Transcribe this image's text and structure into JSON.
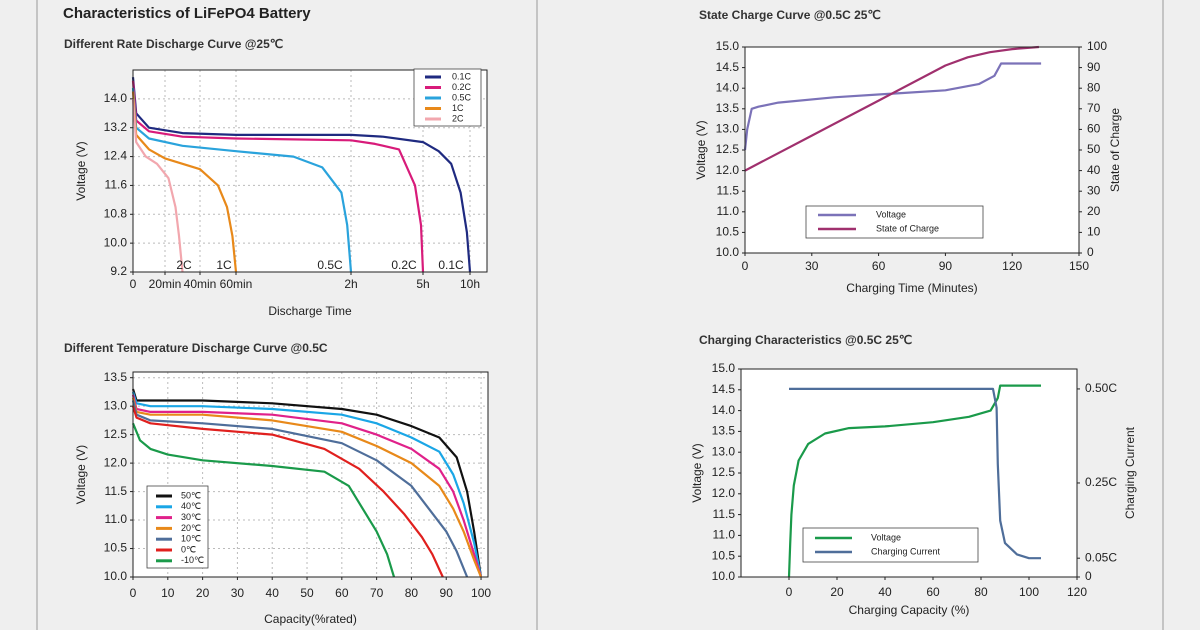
{
  "title": "Characteristics of LiFePO4 Battery",
  "chart_data": [
    {
      "type": "line",
      "title": "Different Rate Discharge Curve @25℃",
      "x_label": "Discharge Time",
      "y_label": "Voltage (V)",
      "ylim": [
        9.2,
        14.8
      ],
      "yticks": [
        9.2,
        {
          "value": 10,
          "label": "10.0"
        },
        10.8,
        11.6,
        12.4,
        13.2,
        {
          "value": 14,
          "label": "14.0"
        }
      ],
      "xlim": [
        0,
        600
      ],
      "xticks": [
        0,
        {
          "value": 20,
          "label": "20min"
        },
        {
          "value": 40,
          "label": "40min"
        },
        {
          "value": 60,
          "label": "60min"
        },
        {
          "value": 120,
          "label": "2h"
        },
        {
          "value": 300,
          "label": "5h"
        },
        {
          "value": 600,
          "label": "10h"
        }
      ],
      "grid": true,
      "legend": "upper right",
      "annotations": [
        "2C",
        "1C",
        "0.5C",
        "0.2C",
        "0.1C"
      ],
      "series": [
        {
          "name": "0.1C",
          "color": "#1f2a80",
          "x": [
            0,
            2,
            10,
            30,
            60,
            120,
            200,
            300,
            400,
            480,
            540,
            580,
            600
          ],
          "values": [
            14.6,
            13.6,
            13.2,
            13.05,
            13.0,
            13.0,
            12.95,
            12.8,
            12.55,
            12.2,
            11.4,
            10.3,
            9.2
          ]
        },
        {
          "name": "0.2C",
          "color": "#d81b7a",
          "x": [
            0,
            2,
            10,
            30,
            60,
            120,
            180,
            240,
            280,
            295,
            300
          ],
          "values": [
            14.5,
            13.4,
            13.1,
            12.95,
            12.9,
            12.85,
            12.75,
            12.6,
            11.6,
            10.5,
            9.2
          ]
        },
        {
          "name": "0.5C",
          "color": "#2aa3dc",
          "x": [
            0,
            2,
            10,
            30,
            60,
            90,
            105,
            115,
            118,
            120
          ],
          "values": [
            14.3,
            13.2,
            12.9,
            12.7,
            12.55,
            12.4,
            12.1,
            11.4,
            10.5,
            9.2
          ]
        },
        {
          "name": "1C",
          "color": "#e8891a",
          "x": [
            0,
            2,
            10,
            20,
            40,
            50,
            55,
            58,
            60
          ],
          "values": [
            14.2,
            13.0,
            12.6,
            12.35,
            12.05,
            11.6,
            11.0,
            10.2,
            9.2
          ]
        },
        {
          "name": "2C",
          "color": "#f2a7ae",
          "x": [
            0,
            2,
            8,
            15,
            22,
            26,
            28,
            30
          ],
          "values": [
            14.0,
            12.8,
            12.4,
            12.2,
            11.8,
            11.0,
            10.2,
            9.2
          ]
        }
      ]
    },
    {
      "type": "line",
      "title": "Different Temperature Discharge Curve @0.5C",
      "x_label": "Capacity(%rated)",
      "y_label": "Voltage (V)",
      "ylim": [
        10,
        13.6
      ],
      "yticks": [
        {
          "value": 10,
          "label": "10.0"
        },
        10.5,
        {
          "value": 11,
          "label": "11.0"
        },
        11.5,
        {
          "value": 12,
          "label": "12.0"
        },
        12.5,
        {
          "value": 13,
          "label": "13.0"
        },
        13.5
      ],
      "xlim": [
        0,
        102
      ],
      "xticks": [
        0,
        10,
        20,
        30,
        40,
        50,
        60,
        70,
        80,
        90,
        100
      ],
      "grid": true,
      "legend": "lower left",
      "series": [
        {
          "name": "50℃",
          "color": "#111111",
          "x": [
            0,
            1,
            5,
            20,
            40,
            60,
            70,
            80,
            88,
            93,
            96,
            98,
            100
          ],
          "values": [
            13.3,
            13.1,
            13.1,
            13.1,
            13.05,
            12.95,
            12.85,
            12.65,
            12.45,
            12.1,
            11.5,
            10.8,
            10.0
          ]
        },
        {
          "name": "40℃",
          "color": "#1aa6e6",
          "x": [
            0,
            1,
            5,
            20,
            40,
            60,
            70,
            80,
            88,
            92,
            95,
            98,
            100
          ],
          "values": [
            13.25,
            13.05,
            13.0,
            13.0,
            12.95,
            12.85,
            12.7,
            12.45,
            12.2,
            11.8,
            11.3,
            10.6,
            10.0
          ]
        },
        {
          "name": "30℃",
          "color": "#e0218a",
          "x": [
            0,
            1,
            5,
            20,
            40,
            60,
            70,
            80,
            88,
            92,
            95,
            98,
            100
          ],
          "values": [
            13.2,
            12.95,
            12.9,
            12.9,
            12.85,
            12.7,
            12.5,
            12.25,
            11.9,
            11.5,
            11.0,
            10.4,
            10.0
          ]
        },
        {
          "name": "20℃",
          "color": "#e8891a",
          "x": [
            0,
            1,
            5,
            20,
            40,
            60,
            70,
            80,
            88,
            92,
            95,
            98,
            100
          ],
          "values": [
            13.15,
            12.9,
            12.85,
            12.85,
            12.75,
            12.55,
            12.3,
            12.0,
            11.6,
            11.2,
            10.8,
            10.3,
            10.0
          ]
        },
        {
          "name": "10℃",
          "color": "#4f6e9a",
          "x": [
            0,
            1,
            5,
            20,
            40,
            60,
            70,
            80,
            85,
            90,
            93,
            96
          ],
          "values": [
            13.1,
            12.85,
            12.75,
            12.7,
            12.6,
            12.35,
            12.05,
            11.6,
            11.2,
            10.8,
            10.45,
            10.0
          ]
        },
        {
          "name": "0℃",
          "color": "#e0201e",
          "x": [
            0,
            1,
            5,
            20,
            40,
            55,
            65,
            72,
            78,
            83,
            86,
            89
          ],
          "values": [
            13.0,
            12.8,
            12.7,
            12.6,
            12.5,
            12.25,
            11.9,
            11.5,
            11.1,
            10.7,
            10.4,
            10.0
          ]
        },
        {
          "name": "-10℃",
          "color": "#1a9a4a",
          "x": [
            0,
            2,
            5,
            10,
            20,
            40,
            55,
            62,
            66,
            70,
            73,
            75
          ],
          "values": [
            12.7,
            12.4,
            12.25,
            12.15,
            12.05,
            11.95,
            11.85,
            11.6,
            11.2,
            10.8,
            10.4,
            10.0
          ]
        }
      ]
    },
    {
      "type": "line",
      "title": "State  Charge  Curve @0.5C 25℃",
      "x_label": "Charging Time (Minutes)",
      "y_label": "Voltage (V)",
      "y2_label": "State of Charge",
      "ylim": [
        10,
        15
      ],
      "yticks": [
        {
          "value": 10,
          "label": "10.0"
        },
        10.5,
        {
          "value": 11,
          "label": "11.0"
        },
        11.5,
        {
          "value": 12,
          "label": "12.0"
        },
        12.5,
        {
          "value": 13,
          "label": "13.0"
        },
        13.5,
        {
          "value": 14,
          "label": "14.0"
        },
        14.5,
        {
          "value": 15,
          "label": "15.0"
        }
      ],
      "y2lim": [
        0,
        100
      ],
      "y2ticks": [
        0,
        10,
        20,
        30,
        40,
        50,
        60,
        70,
        80,
        90,
        100
      ],
      "xlim": [
        0,
        150
      ],
      "xticks": [
        0,
        30,
        60,
        90,
        120,
        150
      ],
      "grid": false,
      "legend": "lower center",
      "series": [
        {
          "name": "Voltage",
          "color": "#7b72b8",
          "x": [
            0,
            1,
            3,
            6,
            15,
            40,
            70,
            90,
            105,
            112,
            115,
            133
          ],
          "values": [
            12.5,
            13.0,
            13.5,
            13.55,
            13.65,
            13.78,
            13.88,
            13.95,
            14.1,
            14.3,
            14.6,
            14.6
          ]
        },
        {
          "name": "State of Charge",
          "color": "#a0306e",
          "axis": "y2",
          "x": [
            0,
            30,
            60,
            90,
            100,
            110,
            120,
            132
          ],
          "values": [
            40,
            57,
            74,
            91,
            95,
            97.5,
            99,
            100
          ]
        }
      ]
    },
    {
      "type": "line",
      "title": "Charging Characteristics @0.5C 25℃",
      "x_label": "Charging Capacity (%)",
      "y_label": "Voltage (V)",
      "y2_label": "Charging Current",
      "ylim": [
        10,
        15
      ],
      "yticks": [
        {
          "value": 10,
          "label": "10.0"
        },
        10.5,
        {
          "value": 11,
          "label": "11.0"
        },
        11.5,
        {
          "value": 12,
          "label": "12.0"
        },
        12.5,
        {
          "value": 13,
          "label": "13.0"
        },
        13.5,
        {
          "value": 14,
          "label": "14.0"
        },
        14.5,
        {
          "value": 15,
          "label": "15.0"
        }
      ],
      "y2lim": [
        0,
        0.553
      ],
      "y2ticks": [
        0,
        {
          "value": 0.05,
          "label": "0.05C"
        },
        {
          "value": 0.25,
          "label": "0.25C"
        },
        {
          "value": 0.5,
          "label": "0.50C"
        }
      ],
      "xlim": [
        -20,
        120
      ],
      "xticks": [
        0,
        20,
        40,
        60,
        80,
        100,
        120
      ],
      "grid": false,
      "legend": "lower center",
      "series": [
        {
          "name": "Voltage",
          "color": "#1a9a4a",
          "x": [
            0,
            0.5,
            1,
            2,
            4,
            8,
            15,
            25,
            40,
            60,
            75,
            84,
            87,
            88,
            105
          ],
          "values": [
            10.0,
            10.8,
            11.5,
            12.2,
            12.8,
            13.2,
            13.45,
            13.58,
            13.62,
            13.72,
            13.85,
            14.0,
            14.3,
            14.6,
            14.6
          ]
        },
        {
          "name": "Charging Current",
          "color": "#4f6e9a",
          "axis": "y2",
          "x": [
            0,
            85,
            86.5,
            87,
            88,
            90,
            95,
            100,
            105
          ],
          "values": [
            0.5,
            0.5,
            0.45,
            0.3,
            0.15,
            0.09,
            0.06,
            0.05,
            0.05
          ]
        }
      ]
    }
  ]
}
